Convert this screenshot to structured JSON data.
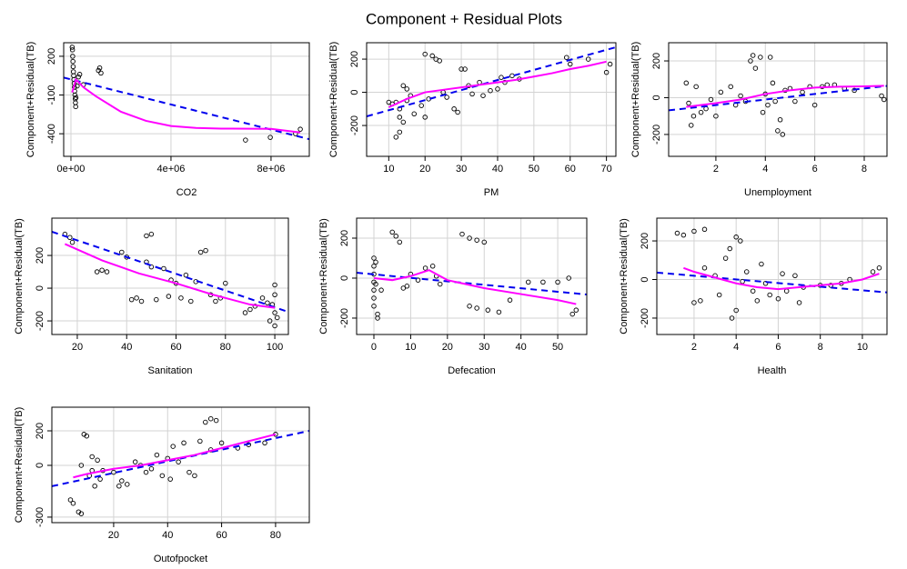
{
  "title": "Component + Residual Plots",
  "chart_data": [
    {
      "type": "scatter",
      "xlabel": "CO2",
      "ylabel": "Component+Residual(TB)",
      "grid": true,
      "xlim": [
        -290000,
        9530000
      ],
      "ylim": [
        -575,
        305
      ],
      "xticks": [
        {
          "value": 0,
          "label": "0e+00"
        },
        {
          "value": 4000000,
          "label": "4e+06"
        },
        {
          "value": 8000000,
          "label": "8e+06"
        }
      ],
      "yticks": [
        -400,
        -100,
        200
      ],
      "series": [
        {
          "style": "points",
          "color": "#000000",
          "x": [
            50000,
            60000,
            70000,
            80000,
            90000,
            100000,
            110000,
            120000,
            130000,
            140000,
            150000,
            160000,
            170000,
            180000,
            190000,
            200000,
            250000,
            300000,
            350000,
            500000,
            1100000,
            1150000,
            1200000,
            6980000,
            7970000,
            8980000,
            9170000
          ],
          "values": [
            270,
            250,
            200,
            160,
            120,
            80,
            50,
            20,
            -10,
            -40,
            -70,
            -100,
            -130,
            -160,
            -190,
            -120,
            -30,
            40,
            60,
            -20,
            90,
            110,
            70,
            -449,
            -428,
            -400,
            -365
          ]
        },
        {
          "style": "dashed",
          "color": "#0000ee",
          "x": [
            -290000,
            9530000
          ],
          "values": [
            35,
            -442
          ]
        },
        {
          "style": "solid",
          "color": "#ff00ff",
          "x": [
            50000,
            200000,
            500000,
            1000000,
            2000000,
            3000000,
            4000000,
            5000000,
            6000000,
            8000000,
            9170000
          ],
          "values": [
            -80,
            20,
            -40,
            -110,
            -230,
            -300,
            -340,
            -355,
            -360,
            -362,
            -390
          ]
        }
      ]
    },
    {
      "type": "scatter",
      "xlabel": "PM",
      "ylabel": "Component+Residual(TB)",
      "grid": true,
      "xlim": [
        3.9,
        72.6
      ],
      "ylim": [
        -386,
        299
      ],
      "xticks": [
        10,
        20,
        30,
        40,
        50,
        60,
        70
      ],
      "yticks": [
        -200,
        0,
        200
      ],
      "series": [
        {
          "style": "points",
          "color": "#000000",
          "x": [
            12,
            13,
            13,
            14,
            12,
            13,
            15,
            16,
            14,
            15,
            17,
            19,
            20,
            21,
            20,
            22,
            23,
            24,
            25,
            26,
            28,
            29,
            30,
            31,
            32,
            33,
            35,
            36,
            38,
            40,
            41,
            42,
            44,
            46,
            59,
            60,
            65,
            70,
            71,
            10,
            11
          ],
          "values": [
            -60,
            -100,
            -150,
            -180,
            -270,
            -240,
            -50,
            -20,
            40,
            20,
            -130,
            -80,
            -150,
            -40,
            230,
            220,
            200,
            190,
            0,
            -30,
            -100,
            -120,
            140,
            140,
            40,
            -10,
            60,
            -20,
            10,
            20,
            90,
            60,
            100,
            80,
            210,
            170,
            200,
            120,
            170,
            -60,
            -70
          ]
        },
        {
          "style": "dashed",
          "color": "#0000ee",
          "x": [
            3.9,
            72.6
          ],
          "values": [
            -145,
            272
          ]
        },
        {
          "style": "solid",
          "color": "#ff00ff",
          "x": [
            10,
            15,
            20,
            25,
            30,
            35,
            40,
            45,
            50,
            55,
            60,
            65,
            70
          ],
          "values": [
            -90,
            -40,
            0,
            15,
            30,
            45,
            60,
            75,
            95,
            115,
            140,
            160,
            185
          ]
        }
      ]
    },
    {
      "type": "scatter",
      "xlabel": "Unemployment",
      "ylabel": "Component+Residual(TB)",
      "grid": true,
      "xlim": [
        0.09,
        8.92
      ],
      "ylim": [
        -319,
        299
      ],
      "xticks": [
        2,
        4,
        6,
        8
      ],
      "yticks": [
        -200,
        0,
        200
      ],
      "series": [
        {
          "style": "points",
          "color": "#000000",
          "x": [
            0.8,
            0.9,
            1,
            1.1,
            1.2,
            1.4,
            1.6,
            1.8,
            2,
            2.2,
            2.6,
            2.8,
            3,
            3.2,
            3.4,
            3.5,
            3.6,
            3.8,
            3.9,
            4,
            4.1,
            4.2,
            4.3,
            4.4,
            4.5,
            4.6,
            4.7,
            4.8,
            5,
            5.2,
            5.5,
            5.8,
            6,
            6.3,
            6.5,
            6.8,
            7.2,
            7.6,
            8.7,
            8.8
          ],
          "values": [
            80,
            -30,
            -150,
            -100,
            60,
            -80,
            -60,
            -10,
            -100,
            30,
            60,
            -40,
            10,
            -20,
            200,
            230,
            160,
            220,
            -80,
            20,
            -40,
            220,
            80,
            -20,
            -180,
            -120,
            -200,
            40,
            50,
            -20,
            30,
            60,
            -40,
            60,
            70,
            70,
            50,
            40,
            10,
            -10
          ]
        },
        {
          "style": "dashed",
          "color": "#0000ee",
          "x": [
            0.09,
            8.92
          ],
          "values": [
            -69,
            64
          ]
        },
        {
          "style": "solid",
          "color": "#ff00ff",
          "x": [
            0.8,
            2,
            3,
            4,
            5,
            6,
            7,
            8,
            8.8
          ],
          "values": [
            -50,
            -30,
            -10,
            20,
            40,
            55,
            60,
            62,
            65
          ]
        }
      ]
    },
    {
      "type": "scatter",
      "xlabel": "Sanitation",
      "ylabel": "Component+Residual(TB)",
      "grid": true,
      "xlim": [
        9.7,
        105.5
      ],
      "ylim": [
        -283,
        428
      ],
      "xticks": [
        20,
        40,
        60,
        80,
        100
      ],
      "yticks": [
        -200,
        0,
        200
      ],
      "series": [
        {
          "style": "points",
          "color": "#000000",
          "x": [
            15,
            17,
            18,
            28,
            30,
            32,
            38,
            40,
            42,
            44,
            46,
            48,
            48,
            50,
            50,
            52,
            55,
            57,
            58,
            60,
            62,
            64,
            66,
            68,
            70,
            72,
            74,
            76,
            78,
            80,
            88,
            90,
            92,
            95,
            97,
            98,
            99,
            100,
            100,
            100,
            100,
            101
          ],
          "values": [
            330,
            310,
            280,
            100,
            110,
            100,
            220,
            190,
            -70,
            -60,
            -80,
            160,
            320,
            130,
            330,
            -70,
            120,
            -50,
            50,
            30,
            -60,
            80,
            -80,
            40,
            220,
            230,
            -40,
            -80,
            -60,
            30,
            -150,
            -130,
            -110,
            -60,
            -90,
            -200,
            -100,
            -40,
            -150,
            -230,
            20,
            -180
          ]
        },
        {
          "style": "dashed",
          "color": "#0000ee",
          "x": [
            9.7,
            105.5
          ],
          "values": [
            345,
            -145
          ]
        },
        {
          "style": "solid",
          "color": "#ff00ff",
          "x": [
            15,
            30,
            45,
            60,
            75,
            90,
            100
          ],
          "values": [
            270,
            170,
            90,
            30,
            -40,
            -100,
            -120
          ]
        }
      ]
    },
    {
      "type": "scatter",
      "xlabel": "Defecation",
      "ylabel": "Component+Residual(TB)",
      "grid": true,
      "xlim": [
        -4.7,
        57.9
      ],
      "ylim": [
        -282,
        300
      ],
      "xticks": [
        0,
        10,
        20,
        30,
        40,
        50
      ],
      "yticks": [
        -200,
        0,
        200
      ],
      "series": [
        {
          "style": "points",
          "color": "#000000",
          "x": [
            0,
            0,
            0,
            0,
            0,
            0,
            0,
            0.5,
            0.5,
            1,
            1,
            2,
            5,
            6,
            7,
            8,
            9,
            10,
            12,
            14,
            16,
            17,
            18,
            24,
            26,
            28,
            30,
            26,
            28,
            31,
            34,
            37,
            42,
            46,
            50,
            54,
            55,
            53
          ],
          "values": [
            100,
            60,
            20,
            -20,
            -60,
            -100,
            -140,
            80,
            -30,
            -200,
            -180,
            -60,
            230,
            210,
            180,
            -50,
            -40,
            20,
            -10,
            50,
            60,
            10,
            -30,
            220,
            200,
            190,
            180,
            -140,
            -150,
            -160,
            -170,
            -110,
            -20,
            -20,
            -20,
            -180,
            -160,
            0
          ]
        },
        {
          "style": "dashed",
          "color": "#0000ee",
          "x": [
            -4.7,
            57.9
          ],
          "values": [
            27,
            -82
          ]
        },
        {
          "style": "solid",
          "color": "#ff00ff",
          "x": [
            0,
            5,
            10,
            15,
            20,
            30,
            40,
            50,
            55
          ],
          "values": [
            0,
            -10,
            10,
            40,
            -10,
            -50,
            -80,
            -110,
            -130
          ]
        }
      ]
    },
    {
      "type": "scatter",
      "xlabel": "Health",
      "ylabel": "Component+Residual(TB)",
      "grid": true,
      "xlim": [
        0.23,
        11.17
      ],
      "ylim": [
        -285,
        318
      ],
      "xticks": [
        2,
        4,
        6,
        8,
        10
      ],
      "yticks": [
        -200,
        0,
        200
      ],
      "series": [
        {
          "style": "points",
          "color": "#000000",
          "x": [
            1.2,
            1.5,
            2,
            2.5,
            2,
            2.3,
            2.5,
            3,
            3.2,
            3.5,
            3.7,
            3.8,
            4,
            4,
            4.2,
            4.3,
            4.5,
            4.8,
            5,
            5.2,
            5.4,
            5.6,
            6,
            6.2,
            6.4,
            6.8,
            7,
            7.2,
            8,
            8.5,
            9,
            9.4,
            10.5,
            10.8
          ],
          "values": [
            240,
            230,
            250,
            260,
            -120,
            -110,
            60,
            20,
            -80,
            110,
            160,
            -200,
            -160,
            220,
            200,
            -10,
            40,
            -60,
            -110,
            80,
            -20,
            -80,
            -100,
            30,
            -60,
            20,
            -120,
            -40,
            -30,
            -30,
            -20,
            0,
            40,
            60
          ]
        },
        {
          "style": "dashed",
          "color": "#0000ee",
          "x": [
            0.23,
            11.17
          ],
          "values": [
            36,
            -67
          ]
        },
        {
          "style": "solid",
          "color": "#ff00ff",
          "x": [
            1.5,
            2,
            3,
            4,
            5,
            6,
            7,
            8,
            9,
            10,
            10.8
          ],
          "values": [
            60,
            40,
            10,
            -20,
            -40,
            -50,
            -40,
            -30,
            -20,
            0,
            30
          ]
        }
      ]
    },
    {
      "type": "scatter",
      "xlabel": "Outofpocket",
      "ylabel": "Component+Residual(TB)",
      "grid": true,
      "xlim": [
        -2.9,
        92.5
      ],
      "ylim": [
        -332,
        337
      ],
      "xticks": [
        20,
        40,
        60,
        80
      ],
      "yticks": [
        -300,
        0,
        200
      ],
      "series": [
        {
          "style": "points",
          "color": "#000000",
          "x": [
            4,
            5,
            7,
            8,
            8,
            9,
            10,
            11,
            12,
            12,
            13,
            14,
            15,
            16,
            20,
            22,
            23,
            25,
            28,
            30,
            32,
            34,
            36,
            38,
            40,
            41,
            42,
            44,
            46,
            48,
            50,
            52,
            54,
            56,
            58,
            56,
            60,
            66,
            70,
            76,
            80
          ],
          "values": [
            -200,
            -220,
            -270,
            -280,
            0,
            180,
            170,
            -60,
            -30,
            50,
            -120,
            30,
            -80,
            -30,
            -40,
            -120,
            -90,
            -110,
            20,
            0,
            -40,
            -20,
            60,
            -60,
            40,
            -80,
            110,
            20,
            130,
            -40,
            -60,
            140,
            250,
            270,
            260,
            90,
            130,
            100,
            120,
            130,
            180
          ]
        },
        {
          "style": "dashed",
          "color": "#0000ee",
          "x": [
            -2.9,
            92.5
          ],
          "values": [
            -121,
            200
          ]
        },
        {
          "style": "solid",
          "color": "#ff00ff",
          "x": [
            5,
            10,
            20,
            30,
            40,
            50,
            60,
            70,
            80
          ],
          "values": [
            -70,
            -50,
            -20,
            0,
            30,
            60,
            100,
            140,
            180
          ]
        }
      ]
    }
  ]
}
